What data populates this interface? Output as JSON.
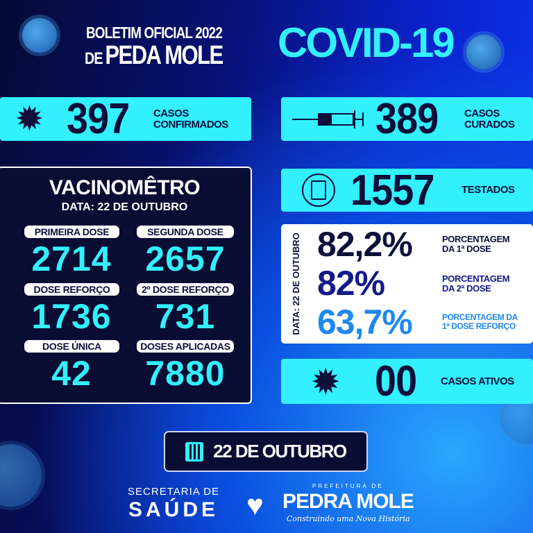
{
  "header": {
    "line1": "BOLETIM OFICIAL 2022",
    "line2_prefix": "DE",
    "line2": "PEDA MOLE",
    "covid": "COVID-19"
  },
  "confirmed": {
    "value": "397",
    "label1": "CASOS",
    "label2": "CONFIRMADOS",
    "icon": "virus-icon"
  },
  "cured": {
    "value": "389",
    "label1": "CASOS",
    "label2": "CURADOS",
    "icon": "syringe-icon"
  },
  "tested": {
    "value": "1557",
    "label": "TESTADOS",
    "icon": "clipboard-icon"
  },
  "vacinometro": {
    "title": "VACINOMÊTRO",
    "date": "DATA: 22 DE OUTUBRO",
    "items": [
      {
        "label": "PRIMEIRA DOSE",
        "value": "2714"
      },
      {
        "label": "SEGUNDA DOSE",
        "value": "2657"
      },
      {
        "label": "DOSE REFORÇO",
        "value": "1736"
      },
      {
        "label": "2º DOSE REFORÇO",
        "value": "731"
      },
      {
        "label": "DOSE ÚNICA",
        "value": "42"
      },
      {
        "label": "DOSES APLICADAS",
        "value": "7880"
      }
    ]
  },
  "percentages": {
    "date": "DATA: 22 DE OUTUBRO",
    "items": [
      {
        "value": "82,2%",
        "label1": "PORCENTAGEM",
        "label2": "DA 1ª DOSE",
        "color": "#0b0f3a"
      },
      {
        "value": "82%",
        "label1": "PORCENTAGEM",
        "label2": "DA 2ª DOSE",
        "color": "#141a8a"
      },
      {
        "value": "63,7%",
        "label1": "PORCENTAGEM DA",
        "label2": "1ª DOSE REFORÇO",
        "color": "#1e88f0"
      }
    ]
  },
  "active": {
    "value": "00",
    "label": "CASOS ATIVOS",
    "icon": "virus-icon"
  },
  "date_button": {
    "label": "22 DE OUTUBRO",
    "icon": "calendar-icon"
  },
  "footer": {
    "secretaria1": "SECRETARIA DE",
    "secretaria2": "SAÚDE",
    "logo_top": "PREFEITURA DE",
    "logo_main": "PEDRA MOLE",
    "logo_slogan": "Construindo uma Nova História"
  },
  "colors": {
    "accent": "#33f0ff",
    "navy": "#0b0f3a"
  }
}
